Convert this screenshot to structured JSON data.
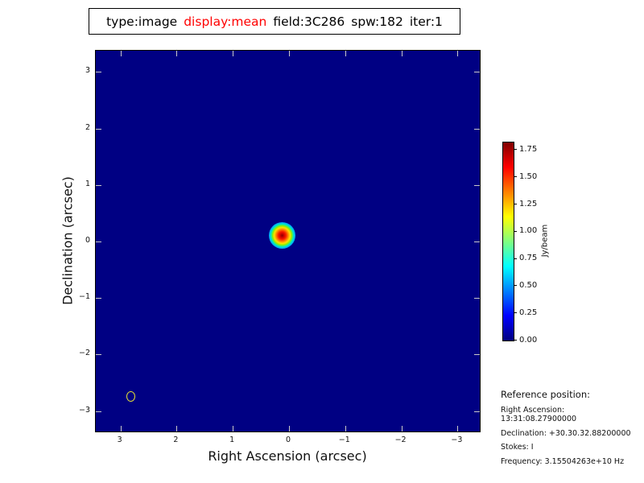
{
  "title": {
    "segments": [
      {
        "text": "type:image",
        "color": "#000000"
      },
      {
        "text": "display:mean",
        "color": "#ff0000"
      },
      {
        "text": "field:3C286",
        "color": "#000000"
      },
      {
        "text": "spw:182",
        "color": "#000000"
      },
      {
        "text": "iter:1",
        "color": "#000000"
      }
    ]
  },
  "axes": {
    "xlabel": "Right Ascension (arcsec)",
    "ylabel": "Declination (arcsec)"
  },
  "colorbar": {
    "label": "Jy/beam",
    "tick_labels": [
      "0.00",
      "0.25",
      "0.50",
      "0.75",
      "1.00",
      "1.25",
      "1.50",
      "1.75"
    ],
    "tick_values": [
      0,
      0.25,
      0.5,
      0.75,
      1.0,
      1.25,
      1.5,
      1.75
    ]
  },
  "reference": {
    "header": "Reference position:",
    "lines": [
      "Right Ascension: 13:31:08.27900000",
      "Declination: +30.30.32.88200000",
      "Stokes: I",
      "Frequency: 3.15504263e+10 Hz"
    ]
  },
  "chart_data": {
    "type": "heatmap",
    "title": "type:image display:mean field:3C286 spw:182 iter:1",
    "xlabel": "Right Ascension (arcsec)",
    "ylabel": "Declination (arcsec)",
    "xtick_values": [
      3,
      2,
      1,
      0,
      -1,
      -2,
      -3
    ],
    "xtick_labels": [
      "3",
      "2",
      "1",
      "0",
      "−1",
      "−2",
      "−3"
    ],
    "ytick_values": [
      3,
      2,
      1,
      0,
      -1,
      -2,
      -3
    ],
    "ytick_labels": [
      "3",
      "2",
      "1",
      "0",
      "−1",
      "−2",
      "−3"
    ],
    "xlim": [
      3.43,
      -3.43
    ],
    "ylim": [
      -3.4,
      3.4
    ],
    "x_axis_inverted": true,
    "grid": false,
    "colormap": "jet",
    "vmin": 0.0,
    "vmax": 1.82,
    "colorbar_label": "Jy/beam",
    "background_value": 0.0,
    "points": [
      {
        "ra_arcsec": 0.1,
        "dec_arcsec": 0.08,
        "peak_jy_per_beam": 1.82,
        "description": "unresolved point source (3C286) with Gaussian beam profile"
      }
    ],
    "beam_marker": {
      "shape": "ellipse",
      "ra_arcsec": 2.8,
      "dec_arcsec": -2.75,
      "width_arcsec": 0.16,
      "height_arcsec": 0.19,
      "color": "#e2de35"
    }
  }
}
